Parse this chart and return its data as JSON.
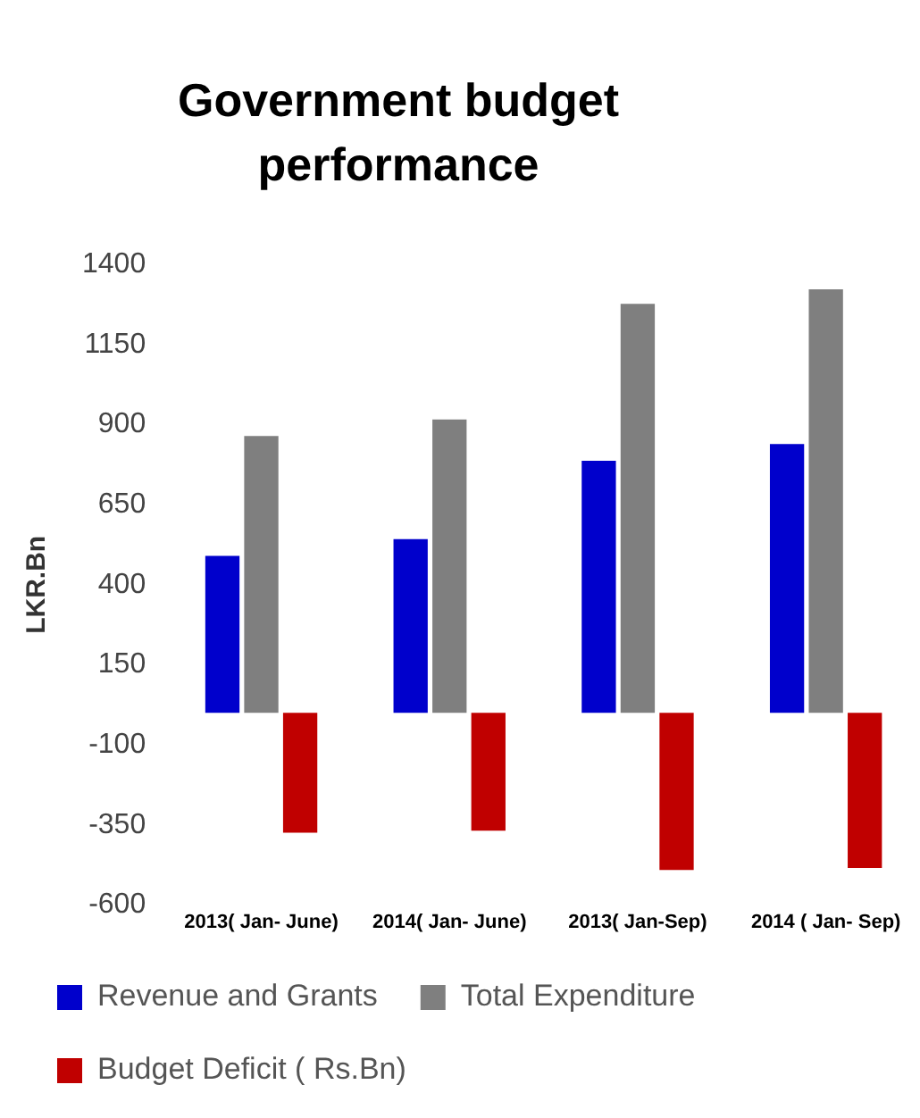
{
  "chart_data": {
    "type": "bar",
    "title": "Government budget performance",
    "ylabel": "LKR.Bn",
    "categories": [
      "2013( Jan- June)",
      "2014( Jan- June)",
      "2013( Jan-Sep)",
      "2014 ( Jan- Sep)"
    ],
    "series": [
      {
        "name": "Revenue and Grants",
        "color": "#0000cc",
        "values": [
          490,
          542,
          787,
          839
        ]
      },
      {
        "name": "Total Expenditure",
        "color": "#7f7f7f",
        "values": [
          864,
          916,
          1277,
          1322
        ]
      },
      {
        "name": "Budget Deficit ( Rs.Bn)",
        "color": "#c00000",
        "values": [
          -374,
          -368,
          -490,
          -484
        ]
      }
    ],
    "ylim": [
      -600,
      1400
    ],
    "yticks": [
      -600,
      -350,
      -100,
      150,
      400,
      650,
      900,
      1150,
      1400
    ],
    "grid": false,
    "legend": "bottom"
  }
}
